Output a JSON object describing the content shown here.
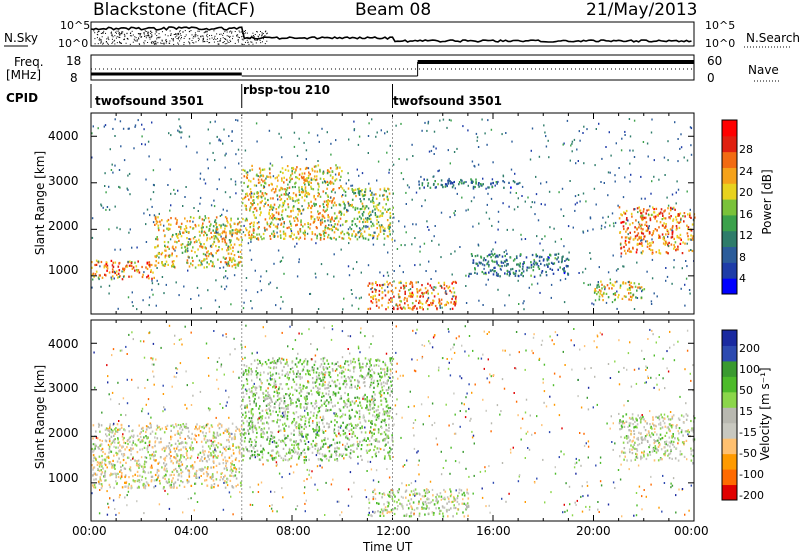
{
  "header": {
    "station": "Blackstone (fitACF)",
    "beam": "Beam 08",
    "date": "21/May/2013"
  },
  "top_panel": {
    "left_label": "N.Sky",
    "right_label": "N.Search",
    "ytick_top": "10^5",
    "ytick_bottom": "10^0",
    "freq_label_1": "Freq.",
    "freq_label_2": "[MHz]",
    "freq_tick_top": "18",
    "freq_tick_bottom": "8",
    "nave_label": "Nave",
    "nave_tick_top": "60",
    "nave_tick_bottom": "0",
    "cpid_label": "CPID"
  },
  "cpid_segments": [
    {
      "name": "twofsound 3501",
      "start_hour": 0,
      "end_hour": 6
    },
    {
      "name": "rbsp-tou 210",
      "start_hour": 6,
      "end_hour": 12
    },
    {
      "name": "twofsound 3501",
      "start_hour": 12,
      "end_hour": 24
    }
  ],
  "axes": {
    "ylabel": "Slant Range [km]",
    "xlabel": "Time UT",
    "x_ticks": [
      "00:00",
      "04:00",
      "08:00",
      "12:00",
      "16:00",
      "20:00",
      "00:00"
    ],
    "y_ticks": [
      "1000",
      "2000",
      "3000",
      "4000"
    ]
  },
  "colorbars": {
    "power": {
      "label": "Power [dB]",
      "ticks": [
        "4",
        "8",
        "12",
        "16",
        "20",
        "24",
        "28"
      ]
    },
    "velocity": {
      "label": "Velocity [m s⁻¹]",
      "ticks": [
        "-200",
        "-100",
        "-50",
        "-15",
        "15",
        "50",
        "100",
        "200"
      ]
    }
  },
  "chart_data": [
    {
      "type": "heatmap",
      "title": "",
      "xlabel": "",
      "ylabel": "Slant Range [km]",
      "xlim": [
        0,
        24
      ],
      "ylim": [
        180,
        4500
      ],
      "x_unit": "hours UT",
      "colorbar": {
        "label": "Power [dB]",
        "range": [
          0,
          32
        ]
      },
      "features": [
        {
          "description_hours": [
            0,
            2.5
          ],
          "range_km": [
            950,
            1350
          ],
          "power_db": 24
        },
        {
          "description_hours": [
            2.5,
            6
          ],
          "range_km": [
            1200,
            2300
          ],
          "power_db": 20
        },
        {
          "description_hours": [
            6,
            10
          ],
          "range_km": [
            1800,
            3400
          ],
          "power_db": 20
        },
        {
          "description_hours": [
            10,
            12
          ],
          "range_km": [
            1800,
            2900
          ],
          "power_db": 16
        },
        {
          "description_hours": [
            11,
            14.5
          ],
          "range_km": [
            300,
            900
          ],
          "power_db": 24
        },
        {
          "description_hours": [
            13,
            17
          ],
          "range_km": [
            2900,
            3100
          ],
          "power_db": 8
        },
        {
          "description_hours": [
            15,
            19
          ],
          "range_km": [
            1000,
            1500
          ],
          "power_db": 8
        },
        {
          "description_hours": [
            20,
            22
          ],
          "range_km": [
            500,
            900
          ],
          "power_db": 20
        },
        {
          "description_hours": [
            21,
            24
          ],
          "range_km": [
            1500,
            2500
          ],
          "power_db": 24
        }
      ]
    },
    {
      "type": "heatmap",
      "title": "",
      "xlabel": "Time UT",
      "ylabel": "Slant Range [km]",
      "xlim": [
        0,
        24
      ],
      "ylim": [
        180,
        4500
      ],
      "x_unit": "hours UT",
      "colorbar": {
        "label": "Velocity [m s⁻¹]",
        "range": [
          -250,
          250
        ]
      },
      "features": [
        {
          "description_hours": [
            0,
            6
          ],
          "range_km": [
            900,
            2300
          ],
          "velocity": -30
        },
        {
          "description_hours": [
            6,
            12
          ],
          "range_km": [
            1500,
            3700
          ],
          "velocity": 40
        },
        {
          "description_hours": [
            11,
            15
          ],
          "range_km": [
            300,
            900
          ],
          "velocity": 0
        },
        {
          "description_hours": [
            21,
            24
          ],
          "range_km": [
            1500,
            2500
          ],
          "velocity": 0
        }
      ]
    }
  ]
}
